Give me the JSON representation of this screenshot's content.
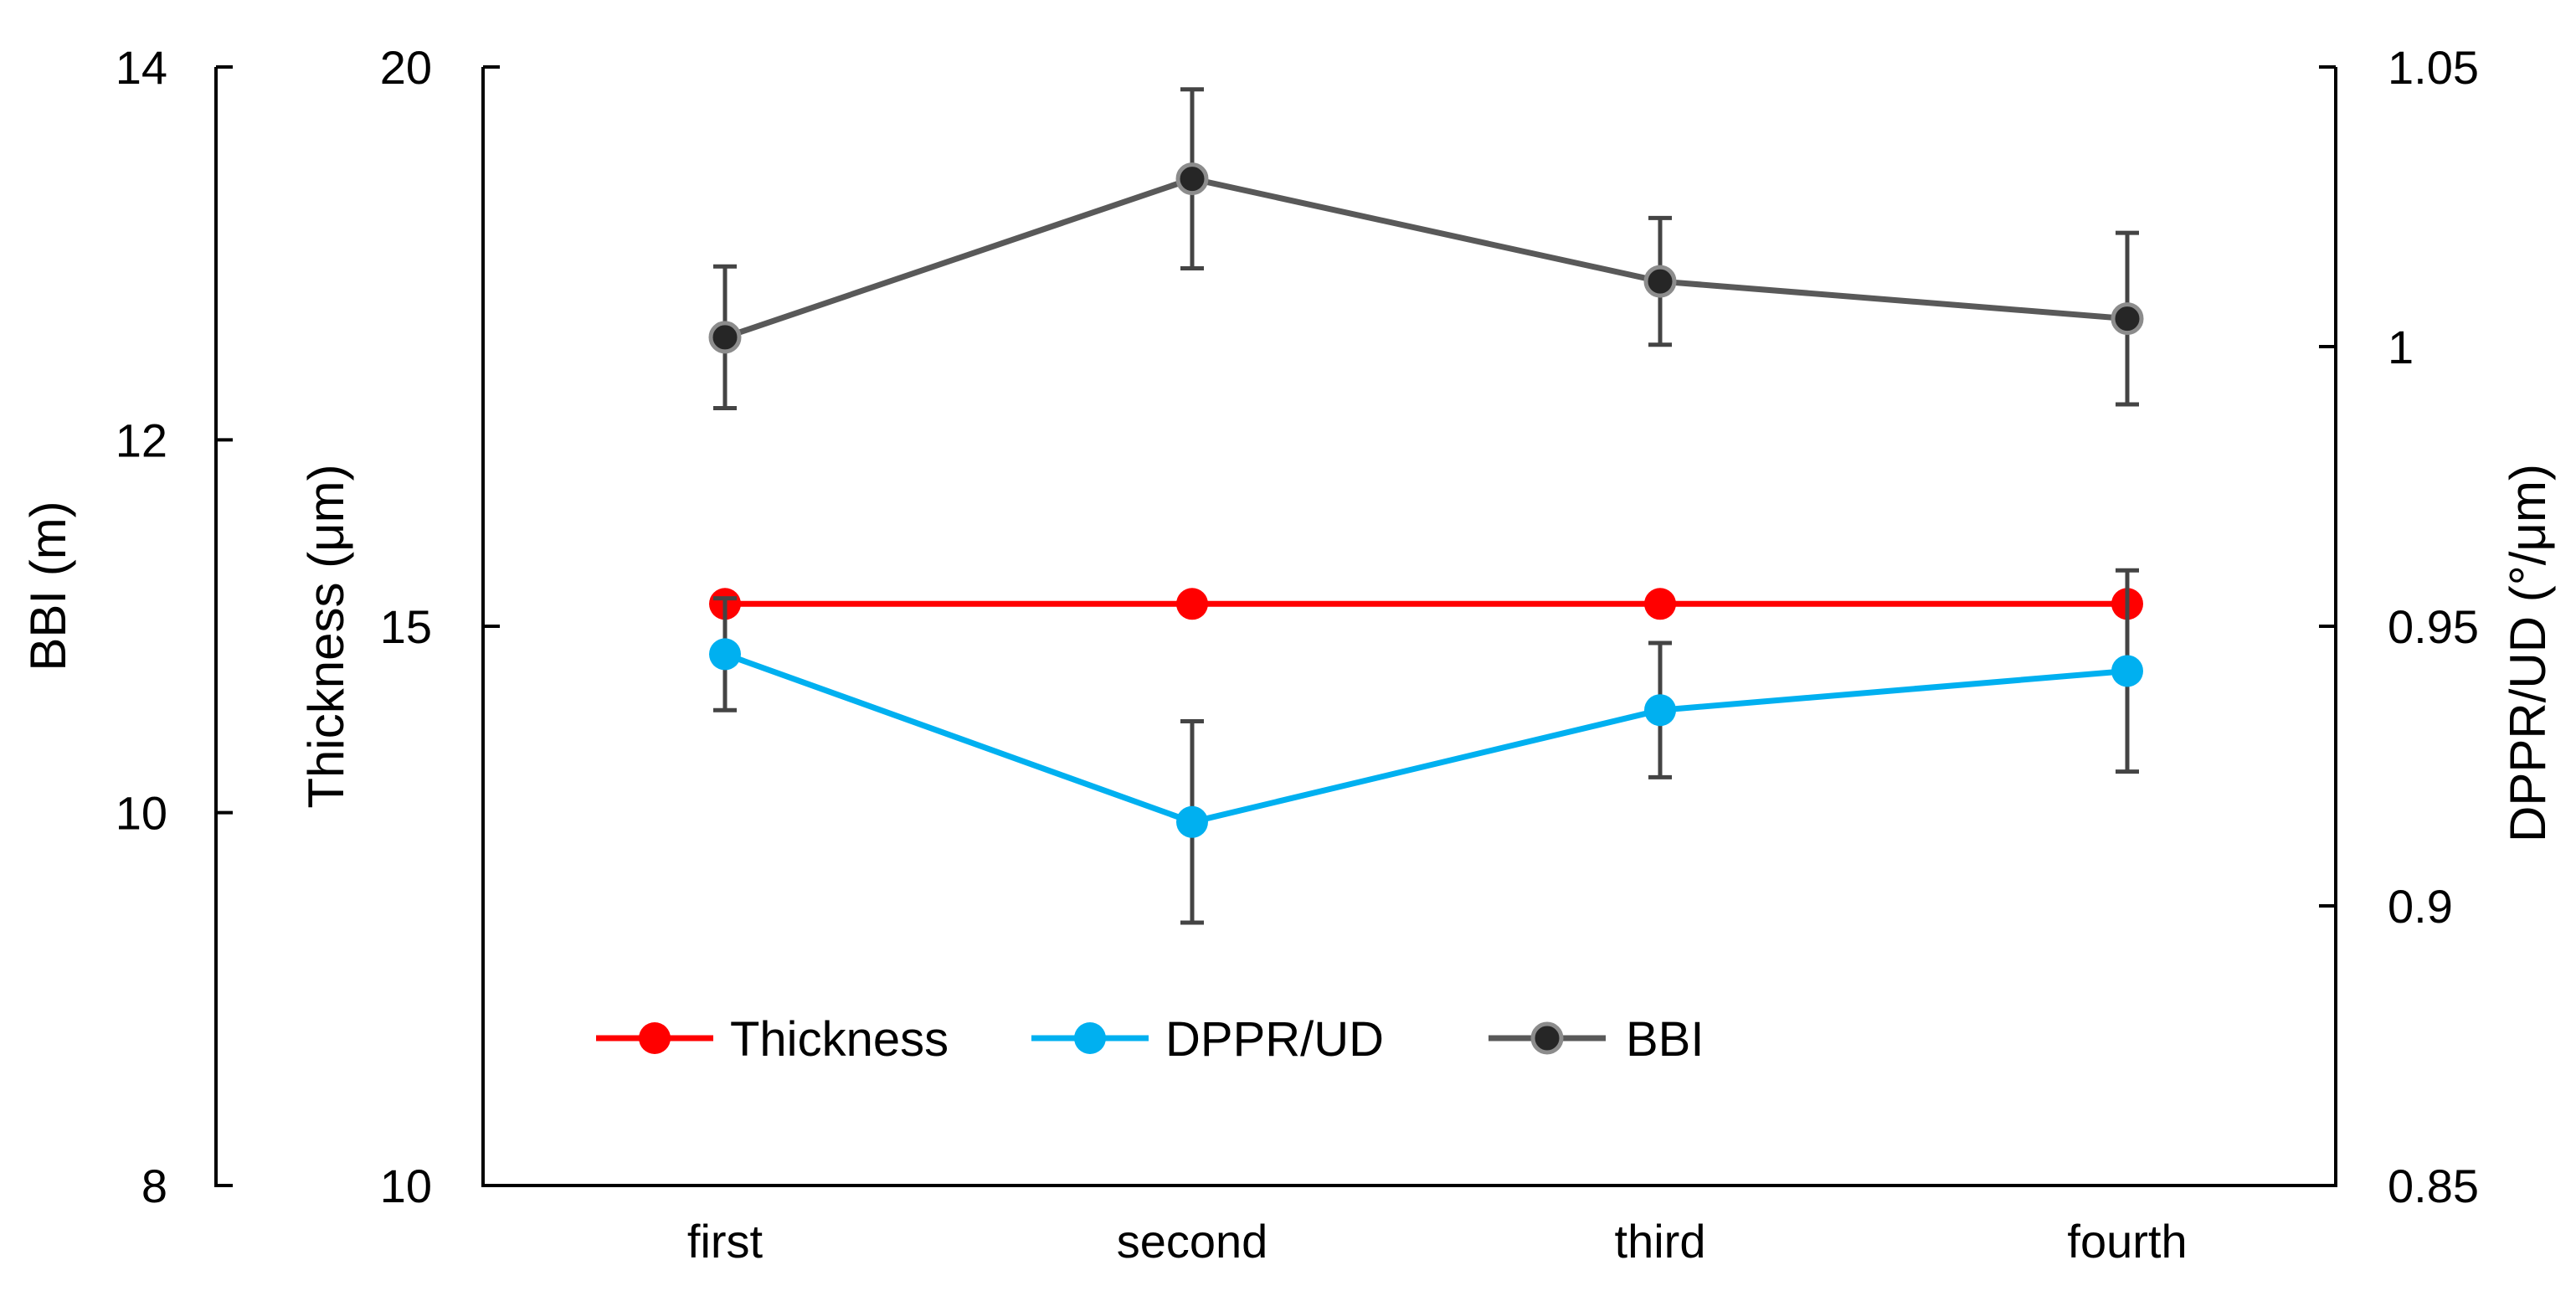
{
  "chart_data": {
    "type": "line",
    "categories": [
      "first",
      "second",
      "third",
      "fourth"
    ],
    "axes": {
      "bbi": {
        "label": "BBI (m)",
        "lim": [
          8,
          14
        ],
        "ticks": [
          8,
          10,
          12,
          14
        ],
        "tick_labels": [
          "8",
          "10",
          "12",
          "14"
        ]
      },
      "thickness": {
        "label": "Thickness (μm)",
        "lim": [
          10,
          20
        ],
        "ticks": [
          10,
          15,
          20
        ],
        "tick_labels": [
          "10",
          "15",
          "20"
        ]
      },
      "dppr": {
        "label": "DPPR/UD (°/μm)",
        "lim": [
          0.85,
          1.05
        ],
        "ticks": [
          0.85,
          0.9,
          0.95,
          1.0,
          1.05
        ],
        "tick_labels": [
          "0.85",
          "0.9",
          "0.95",
          "1",
          "1.05"
        ]
      }
    },
    "series": [
      {
        "name": "Thickness",
        "axis": "thickness",
        "color": "#ff0000",
        "marker_fill": "#ff0000",
        "values": [
          15.2,
          15.2,
          15.2,
          15.2
        ],
        "errors": [
          0.0,
          0.0,
          0.0,
          0.0
        ]
      },
      {
        "name": "DPPR/UD",
        "axis": "dppr",
        "color": "#00b0f0",
        "marker_fill": "#00b0f0",
        "values": [
          0.945,
          0.915,
          0.935,
          0.942
        ],
        "errors": [
          0.01,
          0.018,
          0.012,
          0.018
        ]
      },
      {
        "name": "BBI",
        "axis": "bbi",
        "color": "#595959",
        "marker_fill": "#262626",
        "values": [
          12.55,
          13.4,
          12.85,
          12.65
        ],
        "errors": [
          0.38,
          0.48,
          0.34,
          0.46
        ]
      }
    ],
    "error_bar_color": "#444444",
    "legend": {
      "placement": "bottom-left",
      "entries": [
        "Thickness",
        "DPPR/UD",
        "BBI"
      ]
    }
  }
}
